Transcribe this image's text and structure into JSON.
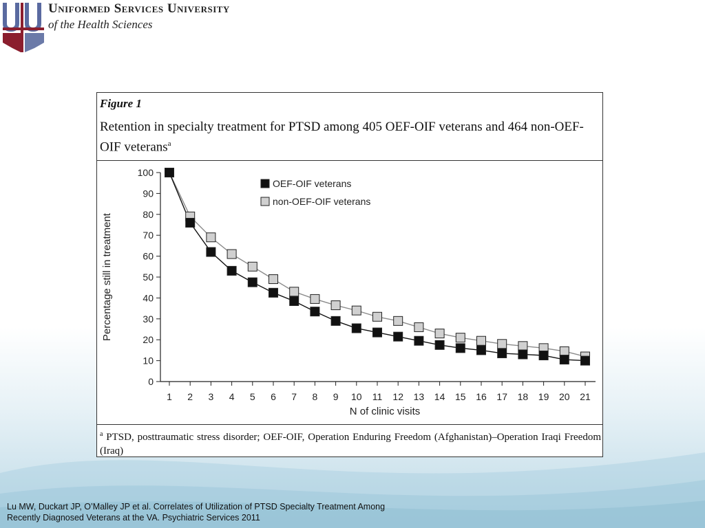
{
  "header": {
    "university_name": "Uniformed Services University",
    "university_subtitle": "of the Health Sciences",
    "logo_letters": "USU"
  },
  "figure": {
    "label": "Figure 1",
    "title": "Retention in specialty treatment for PTSD among 405 OEF-OIF veterans and 464 non-OEF-OIF veterans",
    "title_superscript": "a",
    "footnote_marker": "a",
    "footnote": "PTSD, posttraumatic stress disorder; OEF-OIF, Operation Enduring Freedom (Afghanistan)–Operation Iraqi Freedom (Iraq)"
  },
  "chart_data": {
    "type": "line",
    "xlabel": "N of clinic visits",
    "ylabel": "Percentage still in treatment",
    "x": [
      1,
      2,
      3,
      4,
      5,
      6,
      7,
      8,
      9,
      10,
      11,
      12,
      13,
      14,
      15,
      16,
      17,
      18,
      19,
      20,
      21
    ],
    "xlim": [
      1,
      21
    ],
    "ylim": [
      0,
      100
    ],
    "yticks": [
      0,
      10,
      20,
      30,
      40,
      50,
      60,
      70,
      80,
      90,
      100
    ],
    "grid": false,
    "legend_position": "top-right",
    "series": [
      {
        "name": "OEF-OIF veterans",
        "marker_color": "#111111",
        "line_color": "#111111",
        "values": [
          100,
          76,
          62,
          53,
          47.5,
          42.5,
          38.5,
          33.5,
          29,
          25.5,
          23.5,
          21.5,
          19.5,
          17.5,
          16,
          15,
          13.5,
          13,
          12.5,
          10.5,
          10
        ]
      },
      {
        "name": "non-OEF-OIF veterans",
        "marker_color": "#d0d0d0",
        "line_color": "#8a8a8a",
        "values": [
          100,
          79,
          69,
          61,
          55,
          49,
          43,
          39.5,
          36.5,
          34,
          31,
          29,
          26,
          23,
          21,
          19.5,
          18,
          17,
          16,
          14.5,
          12
        ]
      }
    ]
  },
  "citation": {
    "line1": "Lu MW, Duckart JP, O’Malley JP et al. Correlates of Utilization of PTSD Specialty Treatment Among",
    "line2": "Recently Diagnosed Veterans at the VA. Psychiatric Services 2011"
  }
}
